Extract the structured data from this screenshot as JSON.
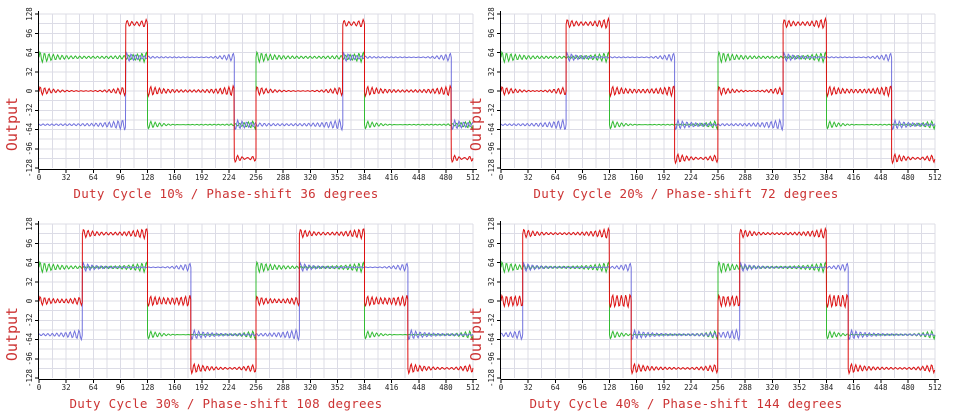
{
  "figure": {
    "ylabel": "Output",
    "background": "#ffffff"
  },
  "colors": {
    "red": "#dd1111",
    "green": "#33bb33",
    "blue": "#7272dd",
    "grid": "#dcdce6",
    "axis": "#000000",
    "tick_text": "#222222",
    "title_text": "#cc3333"
  },
  "chart_data": {
    "type": "line",
    "layout": "2x2-grid",
    "x_range": [
      0,
      512
    ],
    "y_range": [
      -128,
      128
    ],
    "x_ticks": [
      0,
      32,
      64,
      96,
      128,
      160,
      192,
      224,
      256,
      288,
      320,
      352,
      384,
      416,
      448,
      480,
      512
    ],
    "y_ticks": [
      -128,
      -96,
      -64,
      -32,
      0,
      32,
      64,
      96,
      128
    ],
    "grid_step": 16,
    "ylabel": "Output",
    "waveform_note": "band-limited square waves with Gibbs ringing; red = green + blue",
    "charts": [
      {
        "title": "Duty Cycle 10% / Phase-shift 36 degrees",
        "duty_cycle_percent": 10,
        "phase_shift_degrees": 36,
        "series": [
          {
            "name": "green-wave",
            "color_key": "green",
            "amplitude": 56,
            "segments": [
              [
                0,
                128,
                56
              ],
              [
                128,
                256,
                -56
              ],
              [
                256,
                384,
                56
              ],
              [
                384,
                512,
                -56
              ]
            ]
          },
          {
            "name": "blue-wave",
            "color_key": "blue",
            "amplitude": 56,
            "segments": [
              [
                0,
                102.4,
                -56
              ],
              [
                102.4,
                230.4,
                56
              ],
              [
                230.4,
                358.4,
                -56
              ],
              [
                358.4,
                486.4,
                56
              ],
              [
                486.4,
                512,
                -56
              ]
            ]
          },
          {
            "name": "red-wave",
            "color_key": "red",
            "amplitude": 112,
            "segments": [
              [
                0,
                102.4,
                0
              ],
              [
                102.4,
                128,
                112
              ],
              [
                128,
                230.4,
                0
              ],
              [
                230.4,
                256,
                -112
              ],
              [
                256,
                358.4,
                0
              ],
              [
                358.4,
                384,
                112
              ],
              [
                384,
                486.4,
                0
              ],
              [
                486.4,
                512,
                -112
              ]
            ]
          }
        ]
      },
      {
        "title": "Duty Cycle 20% / Phase-shift 72 degrees",
        "duty_cycle_percent": 20,
        "phase_shift_degrees": 72,
        "series": [
          {
            "name": "green-wave",
            "color_key": "green",
            "amplitude": 56,
            "segments": [
              [
                0,
                128,
                56
              ],
              [
                128,
                256,
                -56
              ],
              [
                256,
                384,
                56
              ],
              [
                384,
                512,
                -56
              ]
            ]
          },
          {
            "name": "blue-wave",
            "color_key": "blue",
            "amplitude": 56,
            "segments": [
              [
                0,
                76.8,
                -56
              ],
              [
                76.8,
                204.8,
                56
              ],
              [
                204.8,
                332.8,
                -56
              ],
              [
                332.8,
                460.8,
                56
              ],
              [
                460.8,
                512,
                -56
              ]
            ]
          },
          {
            "name": "red-wave",
            "color_key": "red",
            "amplitude": 112,
            "segments": [
              [
                0,
                76.8,
                0
              ],
              [
                76.8,
                128,
                112
              ],
              [
                128,
                204.8,
                0
              ],
              [
                204.8,
                256,
                -112
              ],
              [
                256,
                332.8,
                0
              ],
              [
                332.8,
                384,
                112
              ],
              [
                384,
                460.8,
                0
              ],
              [
                460.8,
                512,
                -112
              ]
            ]
          }
        ]
      },
      {
        "title": "Duty Cycle 30% / Phase-shift 108 degrees",
        "duty_cycle_percent": 30,
        "phase_shift_degrees": 108,
        "series": [
          {
            "name": "green-wave",
            "color_key": "green",
            "amplitude": 56,
            "segments": [
              [
                0,
                128,
                56
              ],
              [
                128,
                256,
                -56
              ],
              [
                256,
                384,
                56
              ],
              [
                384,
                512,
                -56
              ]
            ]
          },
          {
            "name": "blue-wave",
            "color_key": "blue",
            "amplitude": 56,
            "segments": [
              [
                0,
                51.2,
                -56
              ],
              [
                51.2,
                179.2,
                56
              ],
              [
                179.2,
                307.2,
                -56
              ],
              [
                307.2,
                435.2,
                56
              ],
              [
                435.2,
                512,
                -56
              ]
            ]
          },
          {
            "name": "red-wave",
            "color_key": "red",
            "amplitude": 112,
            "segments": [
              [
                0,
                51.2,
                0
              ],
              [
                51.2,
                128,
                112
              ],
              [
                128,
                179.2,
                0
              ],
              [
                179.2,
                256,
                -112
              ],
              [
                256,
                307.2,
                0
              ],
              [
                307.2,
                384,
                112
              ],
              [
                384,
                435.2,
                0
              ],
              [
                435.2,
                512,
                -112
              ]
            ]
          }
        ]
      },
      {
        "title": "Duty Cycle 40% / Phase-shift 144 degrees",
        "duty_cycle_percent": 40,
        "phase_shift_degrees": 144,
        "series": [
          {
            "name": "green-wave",
            "color_key": "green",
            "amplitude": 56,
            "segments": [
              [
                0,
                128,
                56
              ],
              [
                128,
                256,
                -56
              ],
              [
                256,
                384,
                56
              ],
              [
                384,
                512,
                -56
              ]
            ]
          },
          {
            "name": "blue-wave",
            "color_key": "blue",
            "amplitude": 56,
            "segments": [
              [
                0,
                25.6,
                -56
              ],
              [
                25.6,
                153.6,
                56
              ],
              [
                153.6,
                281.6,
                -56
              ],
              [
                281.6,
                409.6,
                56
              ],
              [
                409.6,
                512,
                -56
              ]
            ]
          },
          {
            "name": "red-wave",
            "color_key": "red",
            "amplitude": 112,
            "segments": [
              [
                0,
                25.6,
                0
              ],
              [
                25.6,
                128,
                112
              ],
              [
                128,
                153.6,
                0
              ],
              [
                153.6,
                256,
                -112
              ],
              [
                256,
                281.6,
                0
              ],
              [
                281.6,
                384,
                112
              ],
              [
                384,
                409.6,
                0
              ],
              [
                409.6,
                512,
                -112
              ]
            ]
          }
        ]
      }
    ]
  }
}
